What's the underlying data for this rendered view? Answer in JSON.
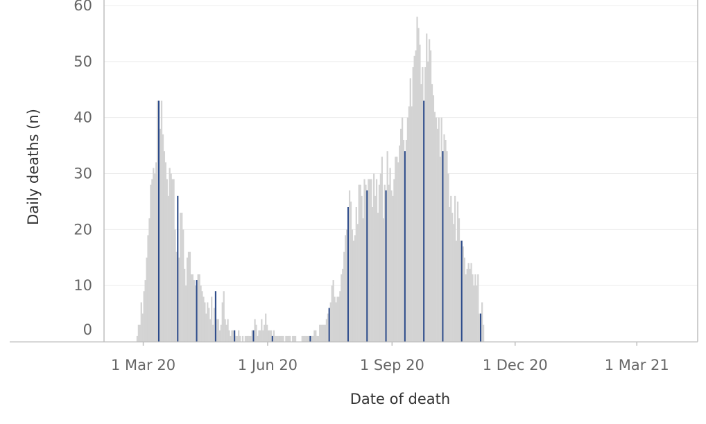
{
  "chart_data": {
    "type": "bar",
    "xlabel": "Date of death",
    "ylabel": "Daily deaths (n)",
    "ylim": [
      0,
      60
    ],
    "y_ticks": [
      "0",
      "10",
      "20",
      "30",
      "40",
      "50",
      "60"
    ],
    "x_ticks": [
      {
        "label": "1 Mar 20",
        "date": "2020-03-01"
      },
      {
        "label": "1 Jun 20",
        "date": "2020-06-01"
      },
      {
        "label": "1 Sep 20",
        "date": "2020-09-01"
      },
      {
        "label": "1 Dec 20",
        "date": "2020-12-01"
      },
      {
        "label": "1 Mar 21",
        "date": "2021-03-01"
      }
    ],
    "x_range": [
      "2020-02-01",
      "2021-04-15"
    ],
    "grid": true,
    "colors": {
      "bars": "#d3d3d3",
      "highlight": "#2b4a8a",
      "grid": "#ececec",
      "axis": "#bdbdbd"
    },
    "series": [
      {
        "start_date": "2020-02-25",
        "values": [
          1,
          3,
          3,
          7,
          5,
          9,
          11,
          15,
          19,
          22,
          28,
          29,
          31,
          30,
          32,
          43,
          43,
          38,
          43,
          37,
          34,
          32,
          29,
          26,
          31,
          30,
          29,
          29,
          20,
          16,
          26,
          15,
          23,
          23,
          20,
          13,
          10,
          15,
          16,
          16,
          12,
          12,
          11,
          10,
          11,
          12,
          12,
          10,
          9,
          8,
          7,
          5,
          7,
          6,
          4,
          8,
          3,
          6,
          9,
          4,
          4,
          2,
          3,
          7,
          9,
          4,
          3,
          4,
          2,
          1,
          2,
          2,
          2,
          1,
          1,
          2,
          1,
          0,
          1,
          0,
          1,
          1,
          1,
          1,
          1,
          2,
          2,
          4,
          3,
          1,
          2,
          2,
          4,
          2,
          3,
          5,
          3,
          2,
          2,
          2,
          1,
          2,
          1,
          1,
          1,
          1,
          1,
          1,
          1,
          0,
          1,
          1,
          1,
          1,
          0,
          1,
          1,
          1,
          0,
          0,
          0,
          0,
          1,
          1,
          1,
          1,
          1,
          1,
          1,
          1,
          1,
          2,
          2,
          1,
          1,
          3,
          3,
          3,
          3,
          3,
          4,
          5,
          6,
          7,
          10,
          11,
          8,
          7,
          8,
          8,
          9,
          12,
          13,
          16,
          19,
          20,
          24,
          27,
          25,
          20,
          18,
          19,
          24,
          21,
          28,
          28,
          26,
          22,
          29,
          28,
          27,
          29,
          29,
          29,
          24,
          30,
          26,
          29,
          23,
          28,
          30,
          33,
          22,
          28,
          27,
          34,
          28,
          31,
          27,
          26,
          29,
          33,
          33,
          32,
          35,
          38,
          40,
          36,
          34,
          36,
          40,
          42,
          47,
          42,
          49,
          51,
          52,
          58,
          56,
          53,
          46,
          49,
          43,
          49,
          55,
          50,
          54,
          52,
          46,
          44,
          41,
          40,
          38,
          40,
          33,
          40,
          34,
          37,
          36,
          34,
          30,
          24,
          26,
          23,
          21,
          26,
          18,
          25,
          22,
          18,
          18,
          17,
          15,
          12,
          13,
          14,
          13,
          14,
          12,
          10,
          12,
          10,
          12,
          5,
          5,
          7,
          3
        ]
      }
    ],
    "highlight_every_days": 14,
    "highlight_start": "2020-03-12"
  }
}
